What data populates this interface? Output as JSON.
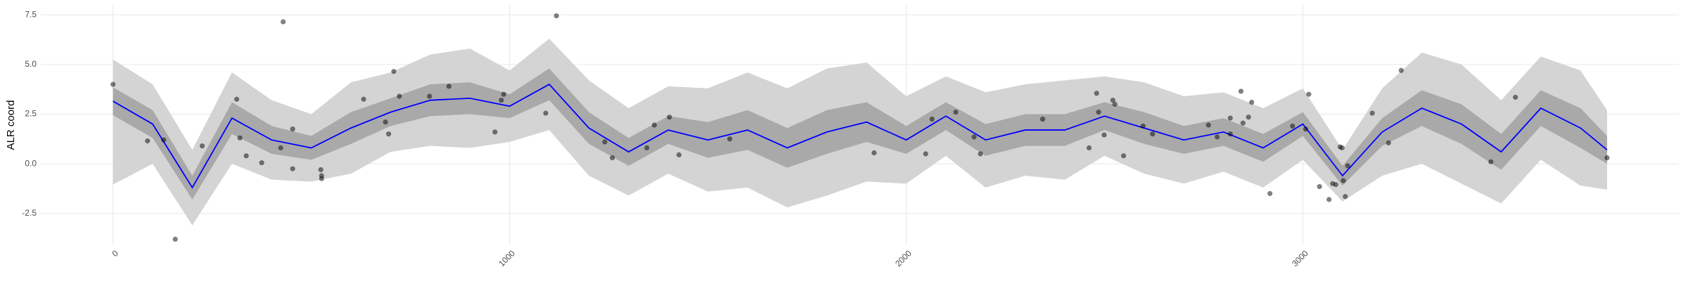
{
  "chart_data": {
    "type": "line",
    "y_label": "ALR coord",
    "x": [
      0,
      100,
      200,
      300,
      400,
      500,
      600,
      700,
      800,
      900,
      1000,
      1100,
      1200,
      1300,
      1400,
      1500,
      1600,
      1700,
      1800,
      1900,
      2000,
      2100,
      2200,
      2300,
      2400,
      2500,
      2600,
      2700,
      2800,
      2900,
      3000,
      3100,
      3200,
      3300,
      3400,
      3500,
      3600,
      3700,
      3767
    ],
    "bands": [
      {
        "color": "#d4d4d4",
        "lower": [
          -1.05,
          0.0,
          -3.1,
          0.0,
          -0.8,
          -0.9,
          -0.5,
          0.6,
          0.9,
          0.8,
          1.1,
          1.7,
          -0.6,
          -1.6,
          -0.5,
          -1.4,
          -1.2,
          -2.2,
          -1.6,
          -0.9,
          -1.0,
          0.4,
          -1.2,
          -0.6,
          -0.8,
          0.4,
          -0.5,
          -1.0,
          -0.4,
          -1.2,
          0.2,
          -1.9,
          -0.6,
          0.0,
          -1.0,
          -2.0,
          0.2,
          -1.1,
          -1.3
        ],
        "upper": [
          5.25,
          4.0,
          0.7,
          4.6,
          3.2,
          2.5,
          4.1,
          4.6,
          5.5,
          5.8,
          4.7,
          6.3,
          4.2,
          2.8,
          3.9,
          3.8,
          4.6,
          3.8,
          4.8,
          5.1,
          3.4,
          4.4,
          3.6,
          4.0,
          4.2,
          4.4,
          4.1,
          3.4,
          3.6,
          2.8,
          3.8,
          0.7,
          3.8,
          5.6,
          5.0,
          3.2,
          5.4,
          4.7,
          2.7
        ]
      },
      {
        "color": "#a9a9a9",
        "lower": [
          2.45,
          1.3,
          -1.8,
          1.5,
          0.5,
          0.2,
          1.0,
          1.9,
          2.4,
          2.5,
          2.3,
          3.2,
          1.0,
          -0.1,
          1.0,
          0.3,
          0.7,
          -0.2,
          0.5,
          1.1,
          0.5,
          1.7,
          0.4,
          0.9,
          0.9,
          1.7,
          1.0,
          0.5,
          0.9,
          0.1,
          1.4,
          -1.1,
          0.9,
          1.9,
          1.0,
          -0.3,
          1.9,
          0.8,
          0.0
        ],
        "upper": [
          3.85,
          2.7,
          -0.6,
          3.1,
          1.9,
          1.4,
          2.6,
          3.3,
          4.0,
          4.1,
          3.5,
          4.8,
          2.6,
          1.3,
          2.4,
          2.1,
          2.7,
          1.8,
          2.7,
          3.1,
          1.9,
          3.1,
          2.0,
          2.5,
          2.5,
          3.1,
          2.6,
          1.9,
          2.3,
          1.5,
          2.6,
          -0.1,
          2.3,
          3.7,
          3.0,
          1.5,
          3.7,
          2.8,
          1.4
        ]
      }
    ],
    "line": {
      "color": "#0000ff",
      "values": [
        3.15,
        2.0,
        -1.2,
        2.3,
        1.2,
        0.8,
        1.8,
        2.6,
        3.2,
        3.3,
        2.9,
        4.0,
        1.8,
        0.6,
        1.7,
        1.2,
        1.7,
        0.8,
        1.6,
        2.1,
        1.2,
        2.4,
        1.2,
        1.7,
        1.7,
        2.4,
        1.8,
        1.2,
        1.6,
        0.8,
        2.0,
        -0.6,
        1.6,
        2.8,
        2.0,
        0.6,
        2.8,
        1.8,
        0.7
      ]
    },
    "points": {
      "color": "#000000",
      "x": [
        0,
        87,
        128,
        157,
        225,
        312,
        320,
        336,
        375,
        423,
        429,
        453,
        453,
        524,
        526,
        526,
        632,
        687,
        695,
        708,
        722,
        798,
        847,
        963,
        979,
        985,
        1091,
        1118,
        1240,
        1259,
        1346,
        1365,
        1403,
        1427,
        1555,
        1919,
        2049,
        2065,
        2125,
        2171,
        2187,
        2344,
        2461,
        2480,
        2485,
        2499,
        2521,
        2526,
        2548,
        2597,
        2621,
        2762,
        2784,
        2817,
        2817,
        2844,
        2849,
        2863,
        2871,
        2917,
        2974,
        3007,
        3015,
        3042,
        3066,
        3075,
        3083,
        3094,
        3099,
        3102,
        3107,
        3113,
        3175,
        3216,
        3248,
        3474,
        3536,
        3767
      ],
      "y": [
        4.0,
        1.15,
        1.2,
        -3.8,
        0.9,
        3.25,
        1.3,
        0.4,
        0.05,
        0.8,
        7.15,
        1.75,
        -0.25,
        -0.3,
        -0.75,
        -0.6,
        3.25,
        2.1,
        1.5,
        4.65,
        3.4,
        3.4,
        3.9,
        1.6,
        3.2,
        3.5,
        2.55,
        7.45,
        1.1,
        0.3,
        0.8,
        1.95,
        2.35,
        0.45,
        1.25,
        0.55,
        0.5,
        2.25,
        2.6,
        1.35,
        0.5,
        2.25,
        0.8,
        3.55,
        2.6,
        1.45,
        3.2,
        3.0,
        0.4,
        1.9,
        1.5,
        1.95,
        1.35,
        2.3,
        1.5,
        3.65,
        2.05,
        2.35,
        3.1,
        -1.5,
        1.9,
        1.75,
        3.5,
        -1.15,
        -1.8,
        -1.0,
        -1.05,
        0.85,
        0.8,
        -0.85,
        -1.65,
        -0.1,
        2.55,
        1.05,
        4.7,
        0.1,
        3.35,
        0.3
      ]
    },
    "xlim": [
      -182,
      3948
    ],
    "ylim": [
      -4.1,
      8.0
    ],
    "xticks": [
      0,
      1000,
      2000,
      3000
    ],
    "yticks": [
      -2.5,
      {
        "value": 0,
        "label": "0.0"
      },
      2.5,
      {
        "value": 5,
        "label": "5.0"
      },
      7.5
    ],
    "grid": true
  }
}
